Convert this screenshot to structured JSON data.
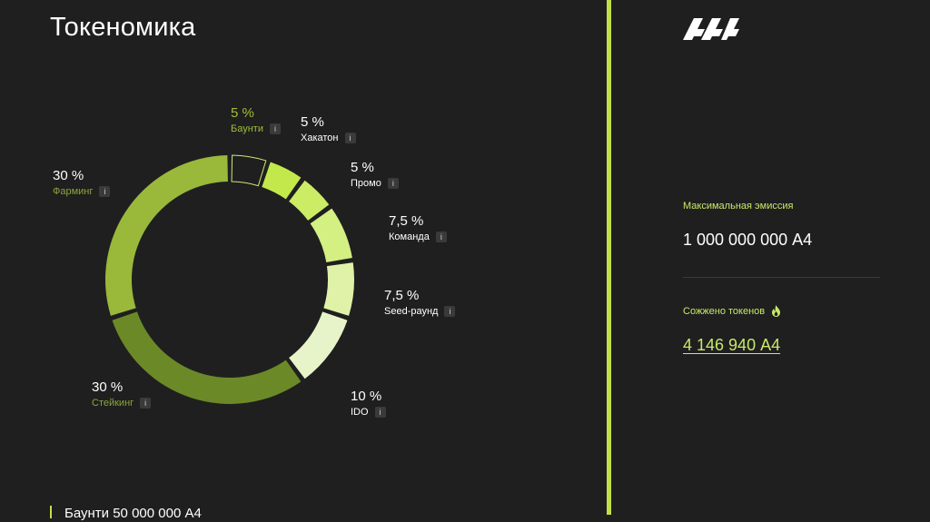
{
  "page": {
    "title": "Токеномика"
  },
  "info_glyph": "i",
  "tokenomics": {
    "segments": [
      {
        "percent": 5,
        "percent_label": "5 %",
        "name": "Баунти",
        "color": "#1f1f1f",
        "outline": "#cfe87a"
      },
      {
        "percent": 5,
        "percent_label": "5 %",
        "name": "Хакатон",
        "color": "#c3e84c"
      },
      {
        "percent": 5,
        "percent_label": "5 %",
        "name": "Промо",
        "color": "#ccec66"
      },
      {
        "percent": 7.5,
        "percent_label": "7,5 %",
        "name": "Команда",
        "color": "#d4ef82"
      },
      {
        "percent": 7.5,
        "percent_label": "7,5 %",
        "name": "Seed-раунд",
        "color": "#dff2a8"
      },
      {
        "percent": 10,
        "percent_label": "10 %",
        "name": "IDO",
        "color": "#e7f4c9"
      },
      {
        "percent": 30,
        "percent_label": "30 %",
        "name": "Стейкинг",
        "color": "#6b8a27"
      },
      {
        "percent": 30,
        "percent_label": "30 %",
        "name": "Фарминг",
        "color": "#9ab83a"
      }
    ]
  },
  "bottom_note": "Баунти 50 000 000 А4",
  "right_panel": {
    "max_emission_label": "Максимальная эмиссия",
    "max_emission_value": "1 000 000 000 А4",
    "burned_label": "Сожжено токенов",
    "burned_icon": "fire-icon",
    "burned_value": "4 146 940 А4"
  },
  "colors": {
    "background": "#1f1f1f",
    "accent": "#c0e04a",
    "accent_text": "#c8e86a"
  }
}
